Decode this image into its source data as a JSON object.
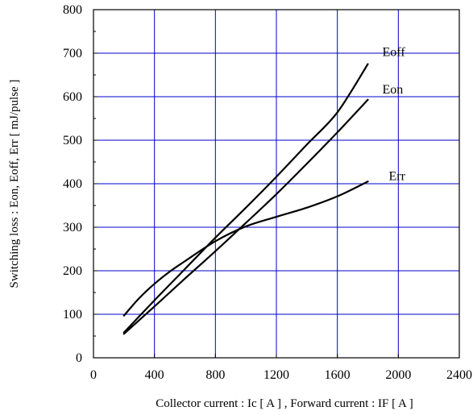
{
  "chart_data": {
    "type": "line",
    "title": "",
    "xlabel": "Collector current  :  Ic  [ A ] , Forward current  :  IF  [ A ]",
    "ylabel": "Switching loss  :  Eon, Eoff, Err  [ mJ/pulse ]",
    "xlim": [
      0,
      2400
    ],
    "ylim": [
      0,
      800
    ],
    "x_ticks": [
      0,
      400,
      800,
      1200,
      1600,
      2000,
      2400
    ],
    "y_ticks": [
      0,
      100,
      200,
      300,
      400,
      500,
      600,
      700,
      800
    ],
    "x_tick_labels": [
      "0",
      "400",
      "800",
      "1200",
      "1600",
      "2000",
      "2400"
    ],
    "y_tick_labels": [
      "0",
      "100",
      "200",
      "300",
      "400",
      "500",
      "600",
      "700",
      "800"
    ],
    "grid": true,
    "grid_color": "#0000cc",
    "line_color": "#000000",
    "series": [
      {
        "name": "Eoff",
        "x": [
          200,
          400,
          600,
          800,
          1000,
          1200,
          1400,
          1600,
          1800
        ],
        "y": [
          58,
          132,
          204,
          276,
          345,
          416,
          490,
          564,
          675
        ]
      },
      {
        "name": "Eon",
        "x": [
          200,
          400,
          600,
          800,
          1000,
          1200,
          1400,
          1600,
          1800
        ],
        "y": [
          55,
          118,
          182,
          245,
          310,
          376,
          446,
          518,
          593
        ]
      },
      {
        "name": "Err",
        "x": [
          200,
          300,
          400,
          500,
          600,
          800,
          1000,
          1200,
          1400,
          1600,
          1800
        ],
        "y": [
          97,
          137,
          170,
          198,
          222,
          268,
          302,
          324,
          345,
          371,
          405
        ]
      }
    ]
  }
}
